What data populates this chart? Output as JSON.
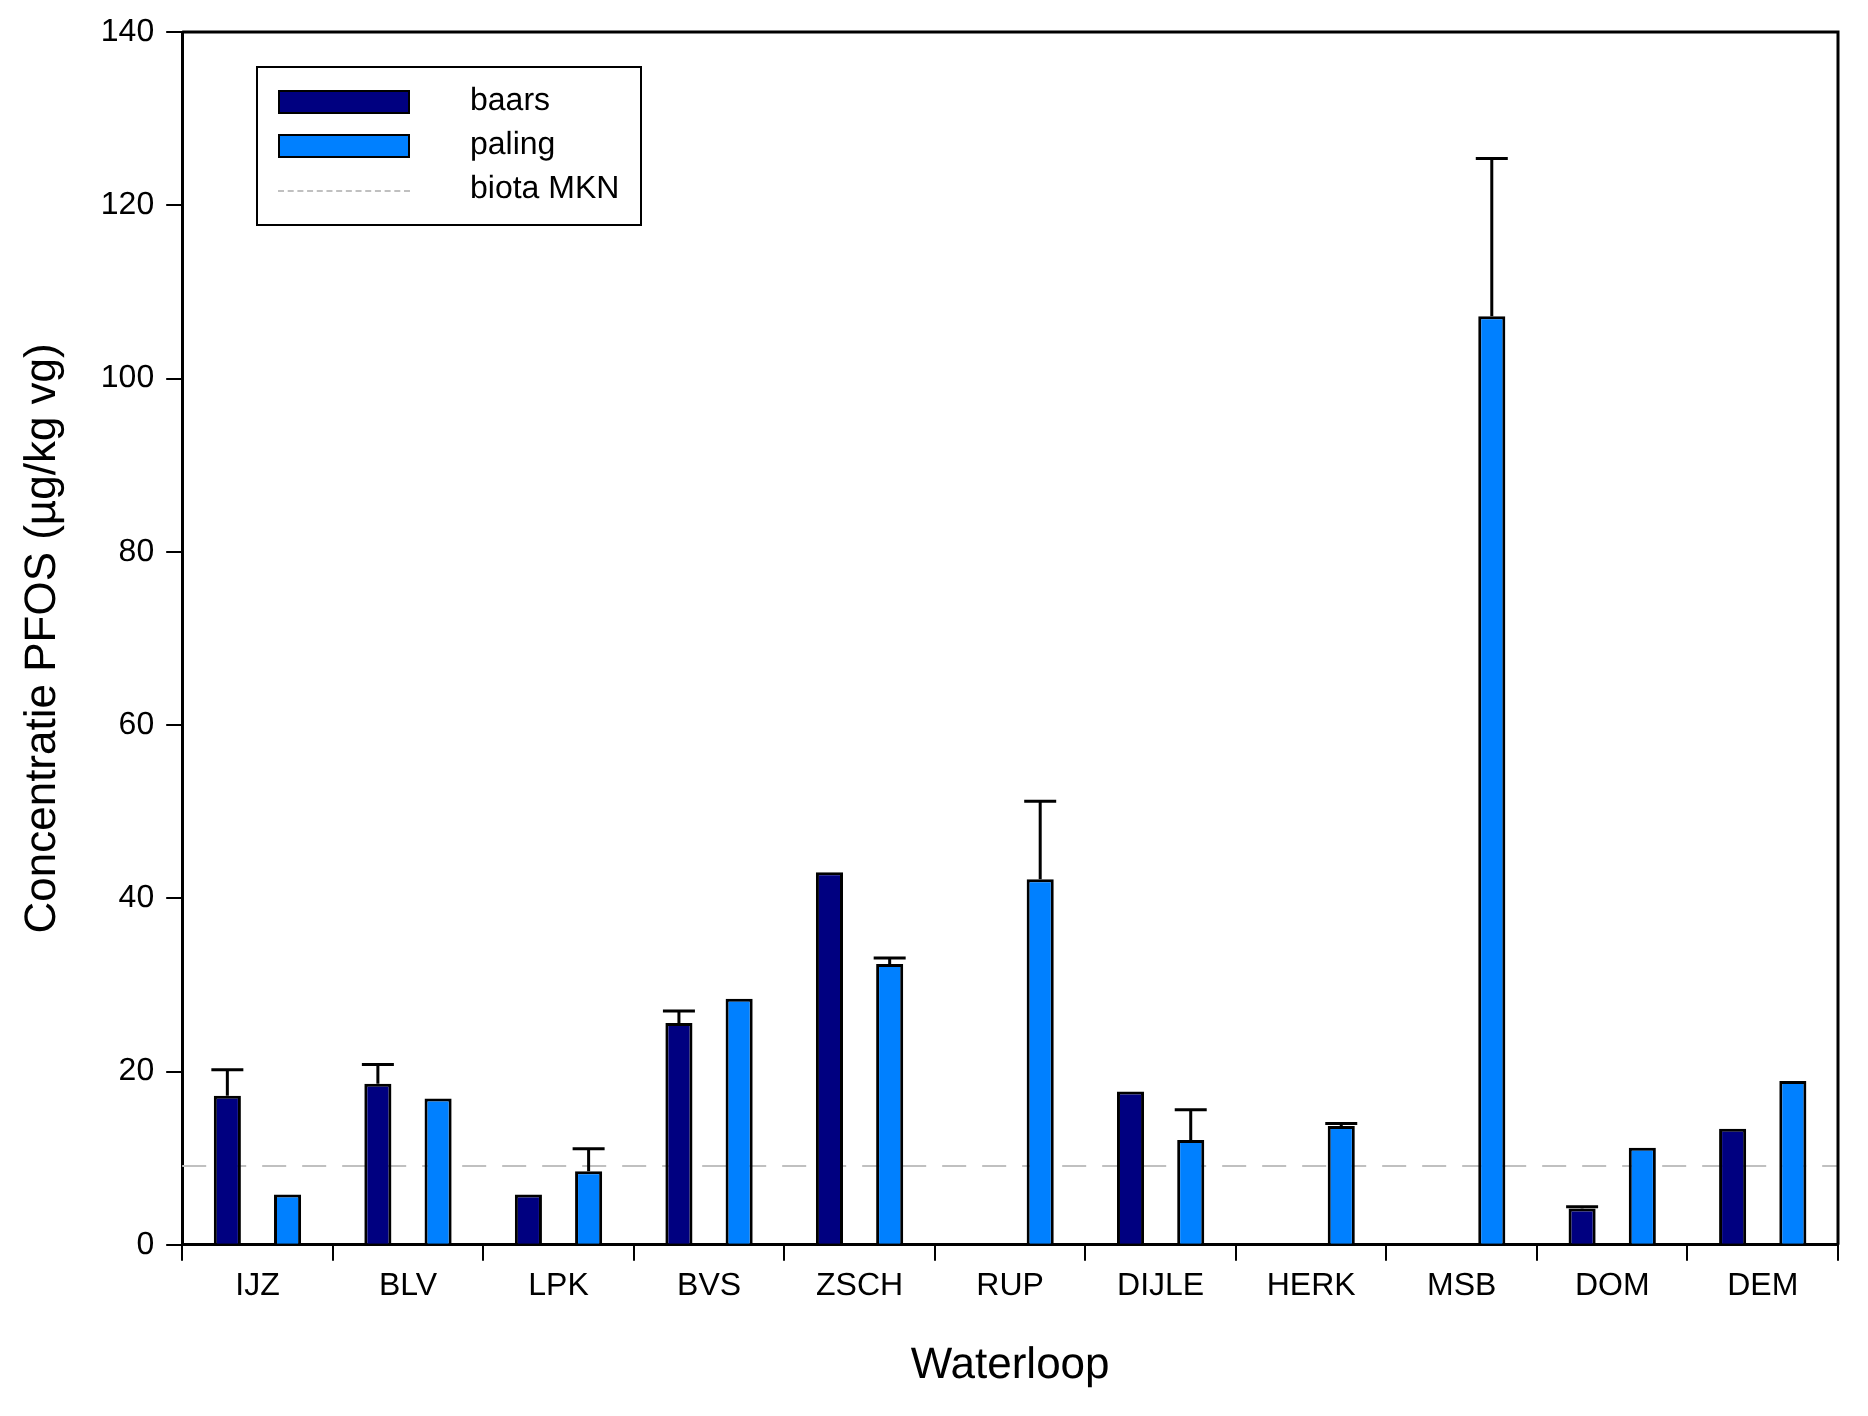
{
  "chart_data": {
    "type": "bar",
    "xlabel": "Waterloop",
    "ylabel": "Concentratie PFOS (µg/kg vg)",
    "categories": [
      "IJZ",
      "BLV",
      "LPK",
      "BVS",
      "ZSCH",
      "RUP",
      "DIJLE",
      "HERK",
      "MSB",
      "DOM",
      "DEM"
    ],
    "series": [
      {
        "name": "baars",
        "color": "#000080",
        "values": [
          17.2,
          18.6,
          5.8,
          25.6,
          43.0,
          null,
          17.7,
          null,
          null,
          4.2,
          13.4
        ],
        "errors": [
          3.0,
          2.2,
          null,
          1.4,
          null,
          null,
          null,
          null,
          null,
          0.2,
          null
        ]
      },
      {
        "name": "paling",
        "color": "#0080ff",
        "values": [
          5.8,
          16.9,
          8.5,
          28.4,
          32.4,
          42.2,
          12.1,
          13.7,
          107.2,
          11.2,
          18.9
        ],
        "errors": [
          null,
          null,
          2.6,
          null,
          0.7,
          9.0,
          3.5,
          0.3,
          18.2,
          null,
          null
        ]
      }
    ],
    "ylim": [
      0,
      140
    ],
    "yticks": [
      0,
      20,
      40,
      60,
      80,
      100,
      120,
      140
    ],
    "grid": false,
    "legend": "top left",
    "ref_lines": [
      {
        "axis": "y",
        "value": 9.1,
        "label": "biota MKN",
        "color": "#c0c0c0",
        "line_style": "dashed"
      }
    ]
  }
}
